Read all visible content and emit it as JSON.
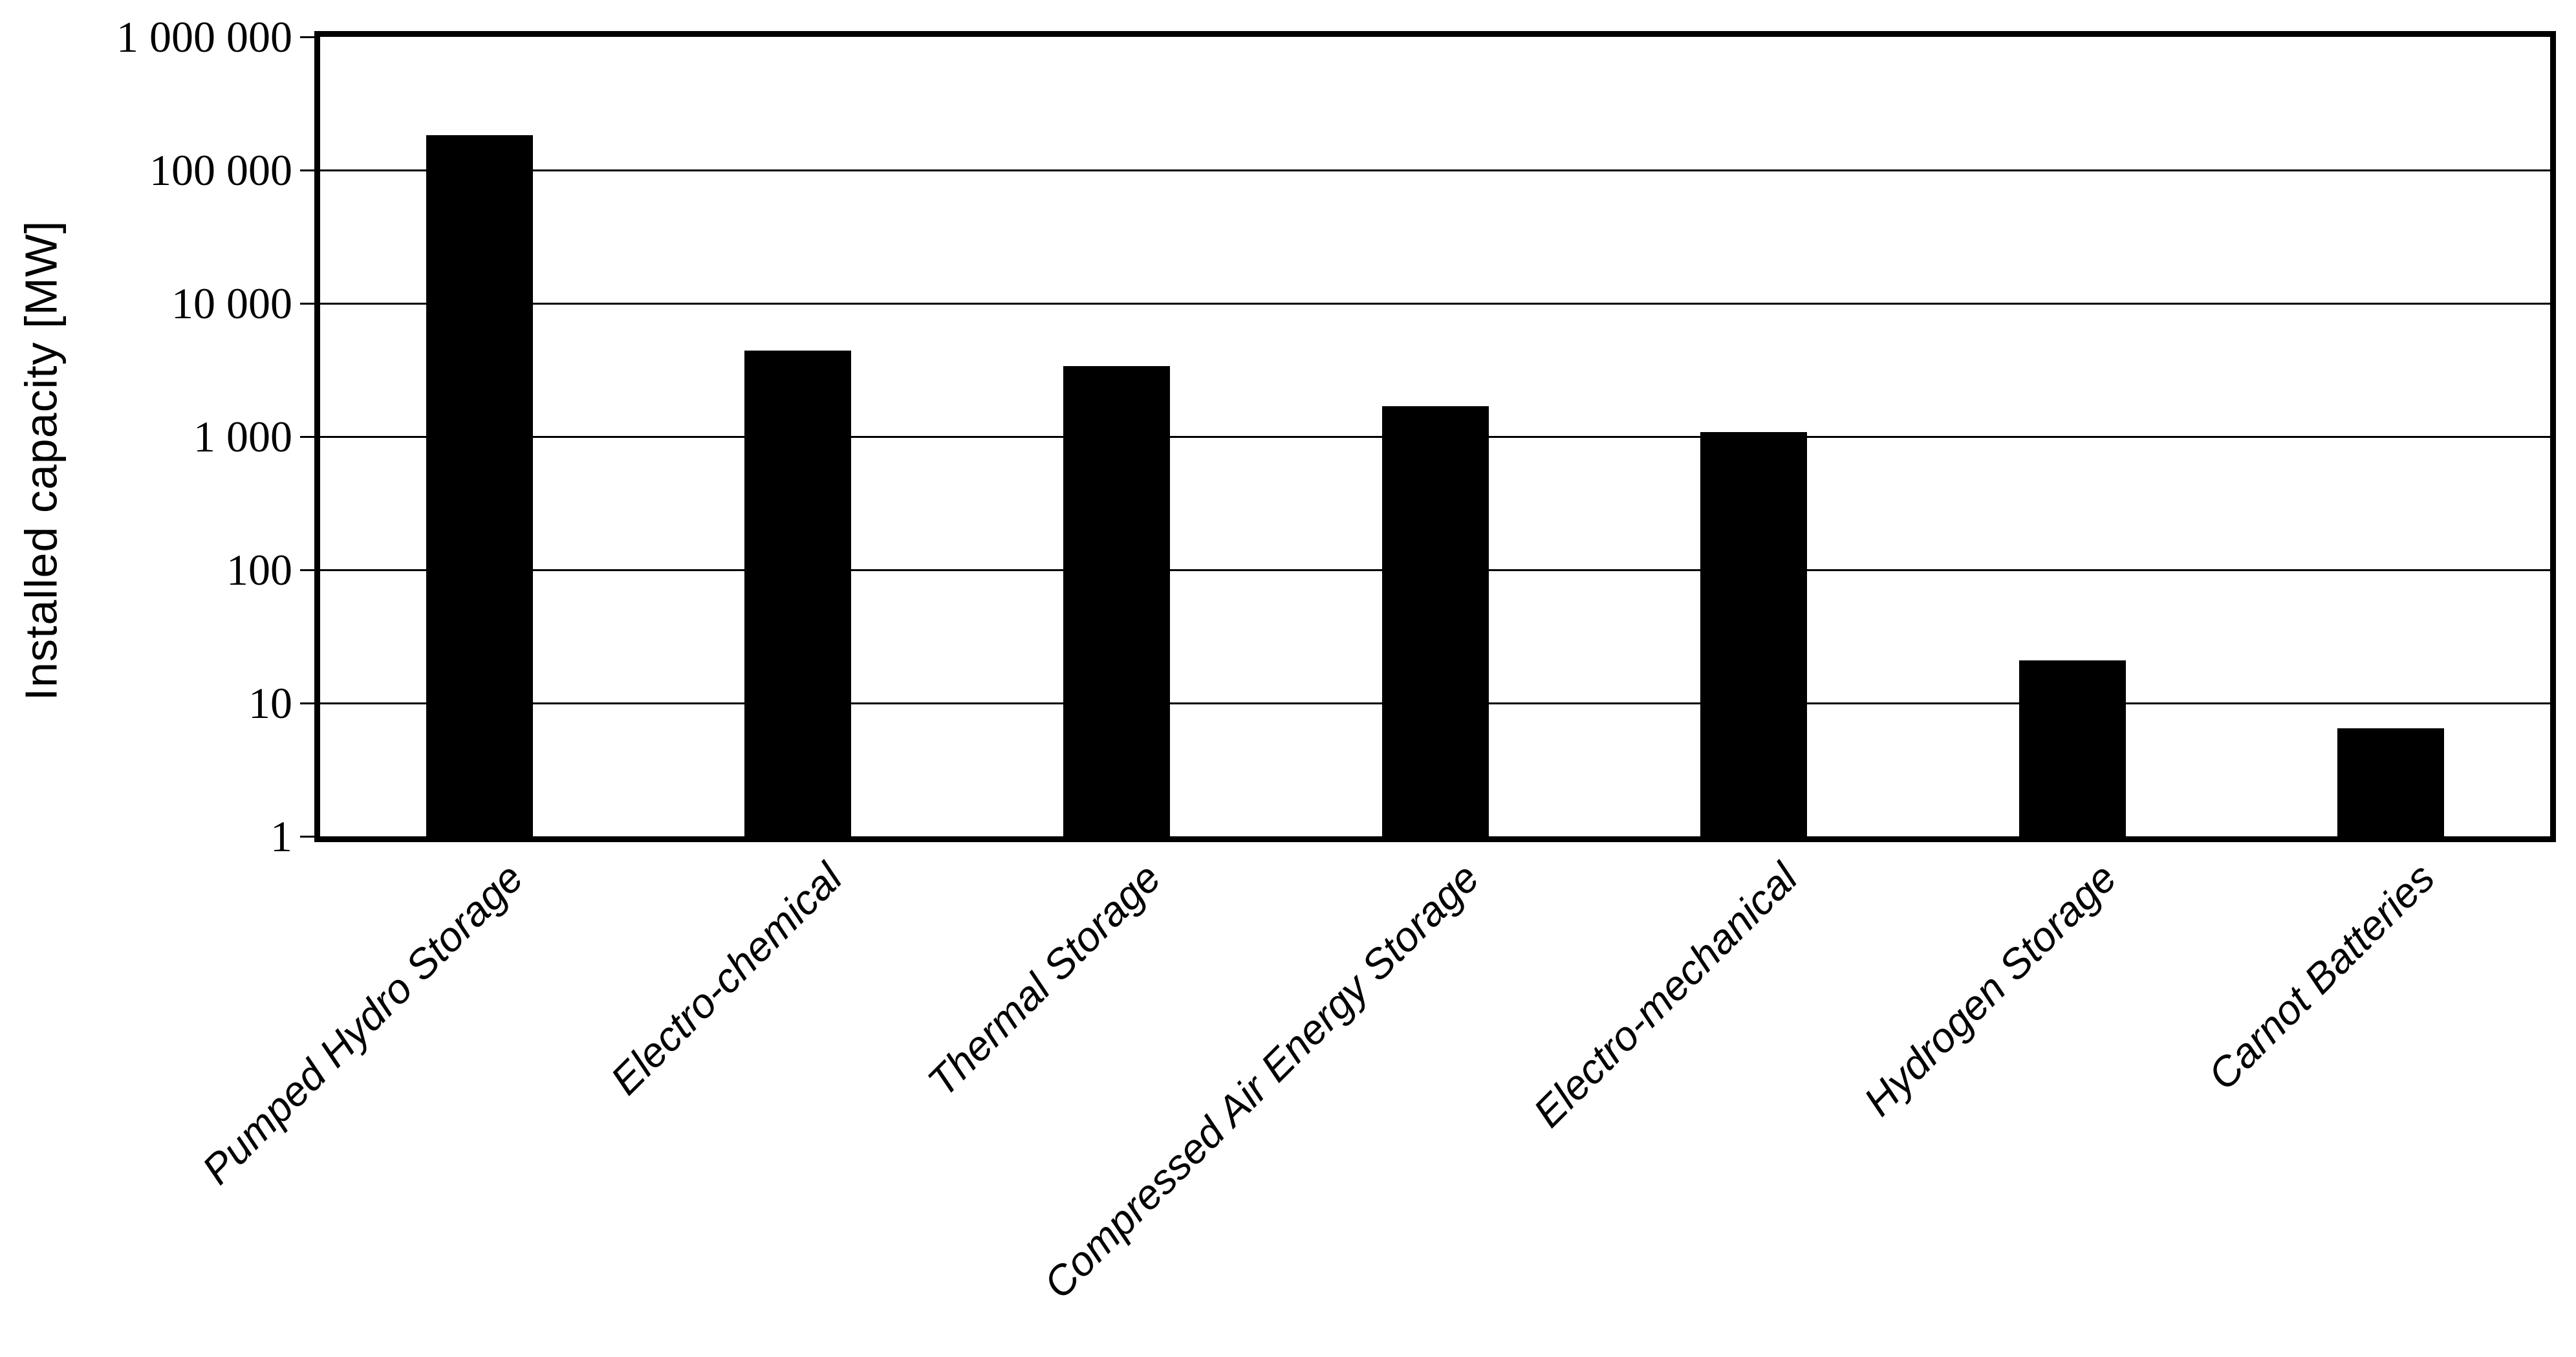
{
  "figure": {
    "background_color": "#ffffff",
    "ink_color": "#000000"
  },
  "chart_data": {
    "type": "bar",
    "title": "",
    "xlabel": "",
    "ylabel": "Installed capacity [MW]",
    "categories": [
      "Pumped Hydro Storage",
      "Electro-chemical",
      "Thermal Storage",
      "Compressed Air Energy Storage",
      "Electro-mechanical",
      "Hydrogen Storage",
      "Carnot Batteries"
    ],
    "values": [
      183000,
      4400,
      3400,
      1700,
      1080,
      21,
      6.5
    ],
    "units": "MW",
    "bar_color": "#000000",
    "yscale": "log",
    "ylim": [
      1,
      1000000
    ],
    "y_tick_labels": [
      "1 000 000",
      "100 000",
      "10 000",
      "1 000",
      "100",
      "10",
      "1"
    ],
    "y_tick_values": [
      1000000,
      100000,
      10000,
      1000,
      100,
      10,
      1
    ],
    "grid": "horizontal",
    "legend": "none",
    "x_label_rotation_deg": -45
  }
}
